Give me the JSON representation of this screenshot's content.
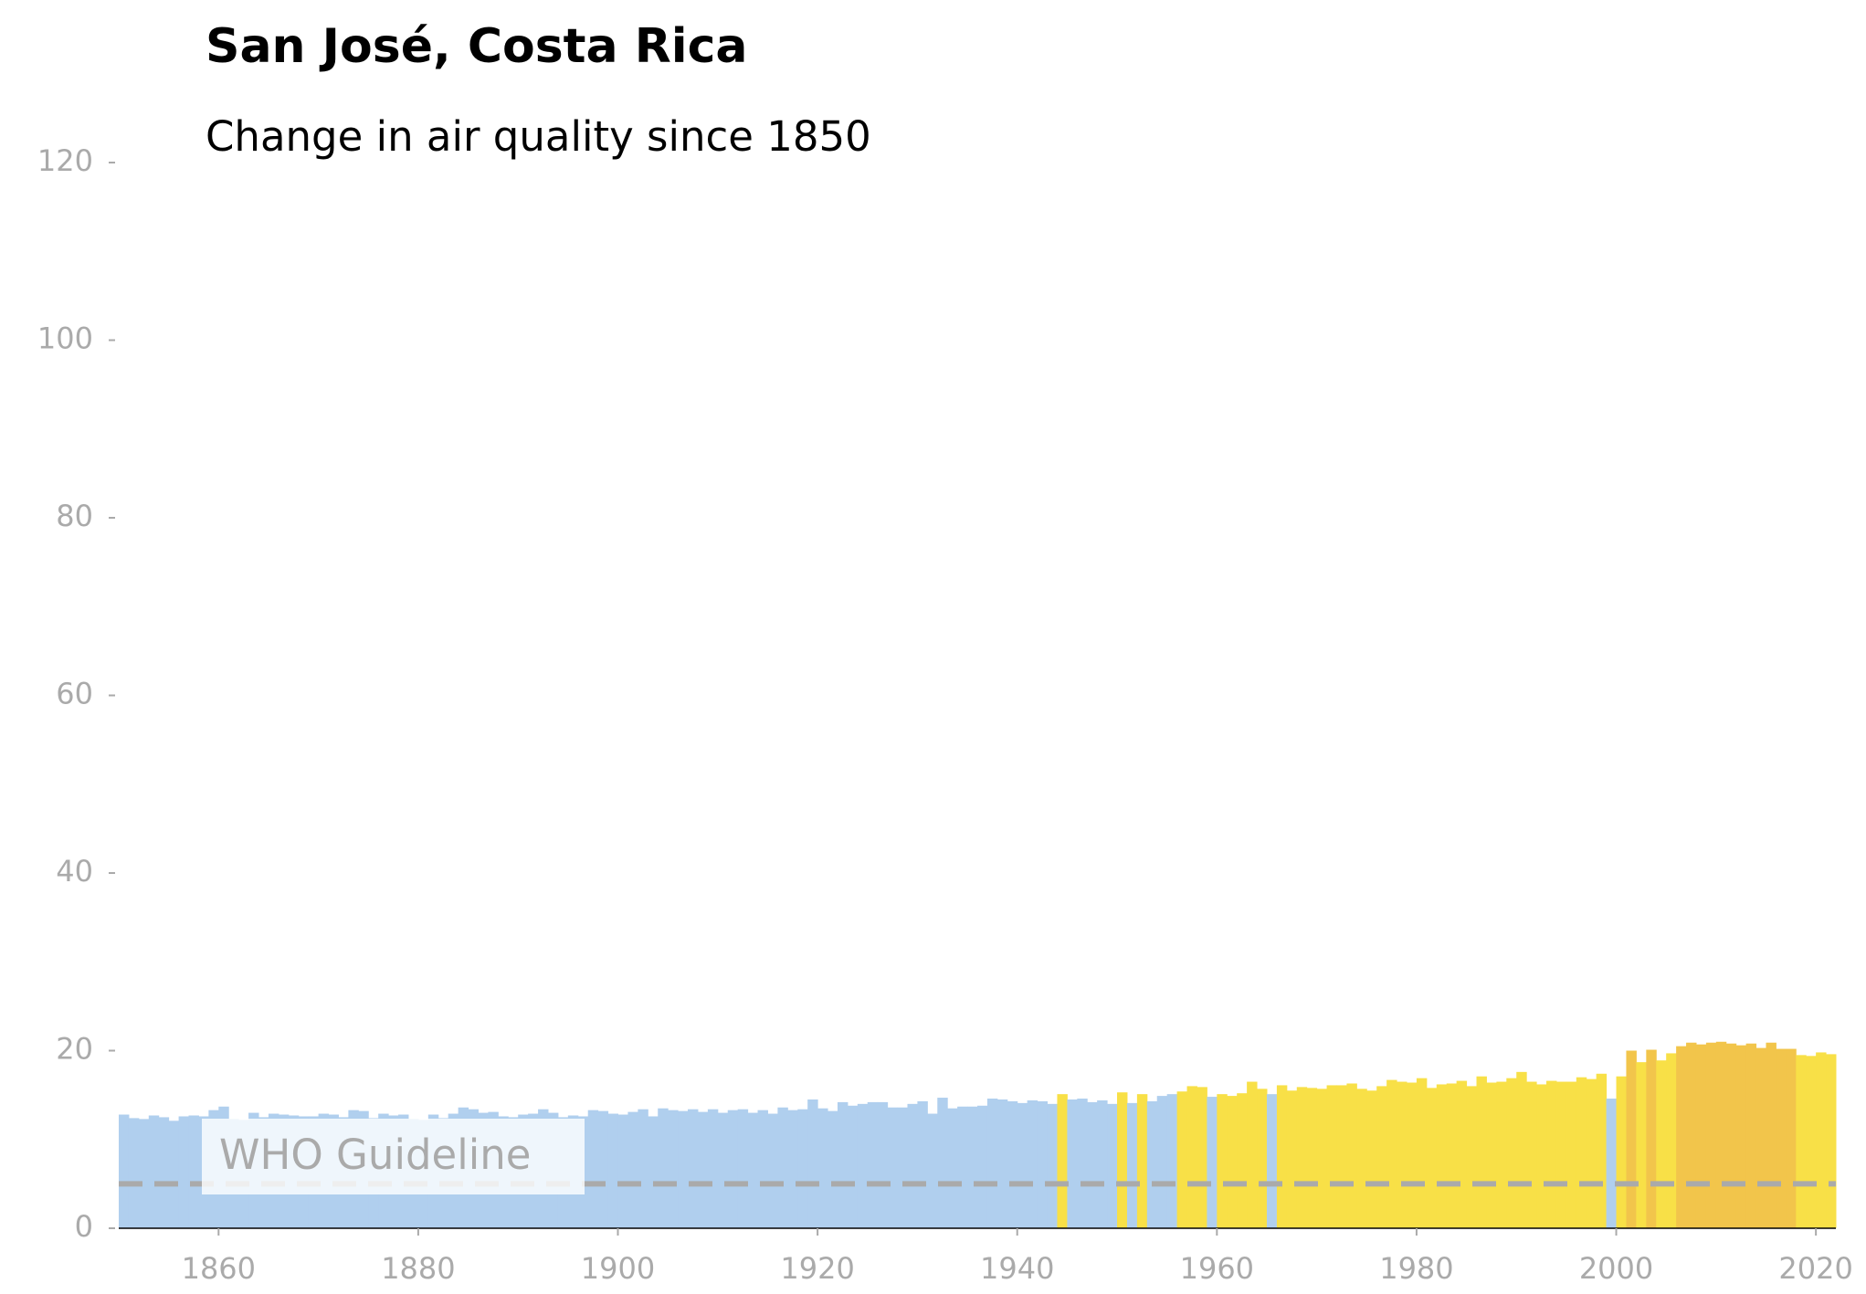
{
  "chart_data": {
    "type": "bar",
    "title": "San José, Costa Rica",
    "subtitle": "Change in air quality since 1850",
    "x": [
      1850,
      1851,
      1852,
      1853,
      1854,
      1855,
      1856,
      1857,
      1858,
      1859,
      1860,
      1861,
      1862,
      1863,
      1864,
      1865,
      1866,
      1867,
      1868,
      1869,
      1870,
      1871,
      1872,
      1873,
      1874,
      1875,
      1876,
      1877,
      1878,
      1879,
      1880,
      1881,
      1882,
      1883,
      1884,
      1885,
      1886,
      1887,
      1888,
      1889,
      1890,
      1891,
      1892,
      1893,
      1894,
      1895,
      1896,
      1897,
      1898,
      1899,
      1900,
      1901,
      1902,
      1903,
      1904,
      1905,
      1906,
      1907,
      1908,
      1909,
      1910,
      1911,
      1912,
      1913,
      1914,
      1915,
      1916,
      1917,
      1918,
      1919,
      1920,
      1921,
      1922,
      1923,
      1924,
      1925,
      1926,
      1927,
      1928,
      1929,
      1930,
      1931,
      1932,
      1933,
      1934,
      1935,
      1936,
      1937,
      1938,
      1939,
      1940,
      1941,
      1942,
      1943,
      1944,
      1945,
      1946,
      1947,
      1948,
      1949,
      1950,
      1951,
      1952,
      1953,
      1954,
      1955,
      1956,
      1957,
      1958,
      1959,
      1960,
      1961,
      1962,
      1963,
      1964,
      1965,
      1966,
      1967,
      1968,
      1969,
      1970,
      1971,
      1972,
      1973,
      1974,
      1975,
      1976,
      1977,
      1978,
      1979,
      1980,
      1981,
      1982,
      1983,
      1984,
      1985,
      1986,
      1987,
      1988,
      1989,
      1990,
      1991,
      1992,
      1993,
      1994,
      1995,
      1996,
      1997,
      1998,
      1999,
      2000,
      2001,
      2002,
      2003,
      2004,
      2005,
      2006,
      2007,
      2008,
      2009,
      2010,
      2011,
      2012,
      2013,
      2014,
      2015,
      2016,
      2017,
      2018,
      2019,
      2020,
      2021
    ],
    "values": [
      12.8,
      12.4,
      12.3,
      12.7,
      12.5,
      12.1,
      12.6,
      12.7,
      12.6,
      13.3,
      13.7,
      12.3,
      12.2,
      13.0,
      12.5,
      12.9,
      12.8,
      12.7,
      12.6,
      12.6,
      12.9,
      12.8,
      12.5,
      13.3,
      13.2,
      12.4,
      12.9,
      12.7,
      12.8,
      12.3,
      12.2,
      12.8,
      12.4,
      12.9,
      13.6,
      13.4,
      13.0,
      13.1,
      12.6,
      12.5,
      12.8,
      12.9,
      13.4,
      13.0,
      12.5,
      12.7,
      12.6,
      13.3,
      13.2,
      12.9,
      12.8,
      13.1,
      13.4,
      12.6,
      13.5,
      13.3,
      13.2,
      13.4,
      13.1,
      13.4,
      13.0,
      13.3,
      13.4,
      13.0,
      13.3,
      12.9,
      13.6,
      13.3,
      13.4,
      14.5,
      13.5,
      13.2,
      14.2,
      13.8,
      14.0,
      14.2,
      14.2,
      13.6,
      13.6,
      14.0,
      14.3,
      12.9,
      14.7,
      13.5,
      13.7,
      13.7,
      13.8,
      14.6,
      14.5,
      14.3,
      14.1,
      14.4,
      14.3,
      14.0,
      15.1,
      14.5,
      14.6,
      14.2,
      14.4,
      14.0,
      15.3,
      14.1,
      15.1,
      14.3,
      14.9,
      15.1,
      15.4,
      16.0,
      15.9,
      14.8,
      15.1,
      14.9,
      15.2,
      16.5,
      15.7,
      15.1,
      16.1,
      15.5,
      15.9,
      15.8,
      15.7,
      16.1,
      16.1,
      16.3,
      15.7,
      15.5,
      16.0,
      16.7,
      16.5,
      16.4,
      16.9,
      15.8,
      16.2,
      16.3,
      16.6,
      16.0,
      17.1,
      16.4,
      16.5,
      16.9,
      17.6,
      16.5,
      16.2,
      16.6,
      16.5,
      16.5,
      17.0,
      16.8,
      17.4,
      14.6,
      17.1,
      20.0,
      18.7,
      20.1,
      18.9,
      19.7,
      20.5,
      20.9,
      20.7,
      20.9,
      21.0,
      20.8,
      20.6,
      20.8,
      20.3,
      20.9,
      20.2,
      20.2,
      19.5,
      19.4,
      19.8,
      19.6
    ],
    "colors": [
      "#b0cfee",
      "#b0cfee",
      "#b0cfee",
      "#b0cfee",
      "#b0cfee",
      "#b0cfee",
      "#b0cfee",
      "#b0cfee",
      "#b0cfee",
      "#b0cfee",
      "#b0cfee",
      "#b0cfee",
      "#b0cfee",
      "#b0cfee",
      "#b0cfee",
      "#b0cfee",
      "#b0cfee",
      "#b0cfee",
      "#b0cfee",
      "#b0cfee",
      "#b0cfee",
      "#b0cfee",
      "#b0cfee",
      "#b0cfee",
      "#b0cfee",
      "#b0cfee",
      "#b0cfee",
      "#b0cfee",
      "#b0cfee",
      "#b0cfee",
      "#b0cfee",
      "#b0cfee",
      "#b0cfee",
      "#b0cfee",
      "#b0cfee",
      "#b0cfee",
      "#b0cfee",
      "#b0cfee",
      "#b0cfee",
      "#b0cfee",
      "#b0cfee",
      "#b0cfee",
      "#b0cfee",
      "#b0cfee",
      "#b0cfee",
      "#b0cfee",
      "#b0cfee",
      "#b0cfee",
      "#b0cfee",
      "#b0cfee",
      "#b0cfee",
      "#b0cfee",
      "#b0cfee",
      "#b0cfee",
      "#b0cfee",
      "#b0cfee",
      "#b0cfee",
      "#b0cfee",
      "#b0cfee",
      "#b0cfee",
      "#b0cfee",
      "#b0cfee",
      "#b0cfee",
      "#b0cfee",
      "#b0cfee",
      "#b0cfee",
      "#b0cfee",
      "#b0cfee",
      "#b0cfee",
      "#b0cfee",
      "#b0cfee",
      "#b0cfee",
      "#b0cfee",
      "#b0cfee",
      "#b0cfee",
      "#b0cfee",
      "#b0cfee",
      "#b0cfee",
      "#b0cfee",
      "#b0cfee",
      "#b0cfee",
      "#b0cfee",
      "#b0cfee",
      "#b0cfee",
      "#b0cfee",
      "#b0cfee",
      "#b0cfee",
      "#b0cfee",
      "#b0cfee",
      "#b0cfee",
      "#b0cfee",
      "#b0cfee",
      "#b0cfee",
      "#b0cfee",
      "#f8e047",
      "#b0cfee",
      "#b0cfee",
      "#b0cfee",
      "#b0cfee",
      "#b0cfee",
      "#f8e047",
      "#b0cfee",
      "#f8e047",
      "#b0cfee",
      "#b0cfee",
      "#b0cfee",
      "#f8e047",
      "#f8e047",
      "#f8e047",
      "#b0cfee",
      "#f8e047",
      "#f8e047",
      "#f8e047",
      "#f8e047",
      "#f8e047",
      "#b0cfee",
      "#f8e047",
      "#f8e047",
      "#f8e047",
      "#f8e047",
      "#f8e047",
      "#f8e047",
      "#f8e047",
      "#f8e047",
      "#f8e047",
      "#f8e047",
      "#f8e047",
      "#f8e047",
      "#f8e047",
      "#f8e047",
      "#f8e047",
      "#f8e047",
      "#f8e047",
      "#f8e047",
      "#f8e047",
      "#f8e047",
      "#f8e047",
      "#f8e047",
      "#f8e047",
      "#f8e047",
      "#f8e047",
      "#f8e047",
      "#f8e047",
      "#f8e047",
      "#f8e047",
      "#f8e047",
      "#f8e047",
      "#f8e047",
      "#f8e047",
      "#b0cfee",
      "#f8e047",
      "#f2c54b",
      "#f8e047",
      "#f2c54b",
      "#f8e047",
      "#f8e047",
      "#f2c54b",
      "#f2c54b",
      "#f2c54b",
      "#f2c54b",
      "#f2c54b",
      "#f2c54b",
      "#f2c54b",
      "#f2c54b",
      "#f2c54b",
      "#f2c54b",
      "#f2c54b",
      "#f2c54b",
      "#f8e047",
      "#f8e047",
      "#f8e047",
      "#f8e047"
    ],
    "who_guideline": {
      "value": 5,
      "label": "WHO Guideline"
    },
    "xlim": [
      1850,
      2022
    ],
    "xticks": [
      1860,
      1880,
      1900,
      1920,
      1940,
      1960,
      1980,
      2000,
      2020
    ],
    "ylim": [
      0,
      120
    ],
    "yticks": [
      0,
      20,
      40,
      60,
      80,
      100,
      120
    ]
  }
}
